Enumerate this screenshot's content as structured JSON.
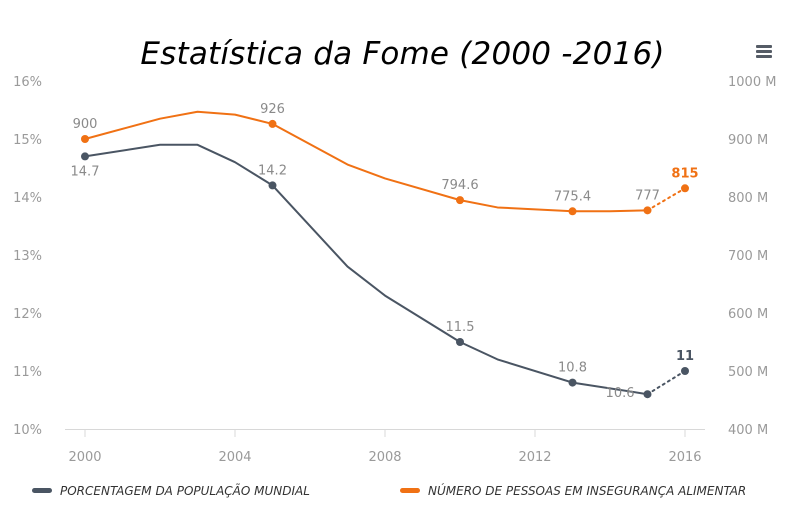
{
  "title": "Estatística da Fome (2000 -2016)",
  "menu_icon": "hamburger-menu-icon",
  "colors": {
    "gray": "#4a5563",
    "orange": "#f07114",
    "axis": "#d8d8d8",
    "ticks": "#9a9a9a"
  },
  "legend": [
    {
      "label": "PORCENTAGEM DA POPULAÇÃO MUNDIAL",
      "color": "#4a5563"
    },
    {
      "label": "NÚMERO DE PESSOAS EM INSEGURANÇA ALIMENTAR",
      "color": "#f07114"
    }
  ],
  "chart_data": {
    "type": "line",
    "title": "Estatística da Fome (2000 -2016)",
    "x_ticks": [
      "2000",
      "2004",
      "2008",
      "2012",
      "2016"
    ],
    "xlim": [
      2000,
      2016
    ],
    "y_left": {
      "ticks": [
        "10%",
        "11%",
        "12%",
        "13%",
        "14%",
        "15%",
        "16%"
      ],
      "range": [
        10,
        16
      ],
      "unit": "%"
    },
    "y_right": {
      "ticks": [
        "400 M",
        "500 M",
        "600 M",
        "700 M",
        "800 M",
        "900 M",
        "1000 M"
      ],
      "range": [
        400,
        1000
      ],
      "unit": "M"
    },
    "grid": false,
    "legend_position": "bottom",
    "series": [
      {
        "name": "PORCENTAGEM DA POPULAÇÃO MUNDIAL",
        "axis": "left",
        "color": "#4a5563",
        "x": [
          2000,
          2002,
          2003,
          2004,
          2005,
          2007,
          2008,
          2010,
          2011,
          2013,
          2015,
          2016
        ],
        "y": [
          14.7,
          14.9,
          14.9,
          14.6,
          14.2,
          12.8,
          12.3,
          11.5,
          11.2,
          10.8,
          10.6,
          11
        ],
        "markers": [
          {
            "x": 2000,
            "y": 14.7,
            "label": "14.7",
            "pos": "below"
          },
          {
            "x": 2005,
            "y": 14.2,
            "label": "14.2",
            "pos": "above"
          },
          {
            "x": 2010,
            "y": 11.5,
            "label": "11.5",
            "pos": "above"
          },
          {
            "x": 2013,
            "y": 10.8,
            "label": "10.8",
            "pos": "above"
          },
          {
            "x": 2015,
            "y": 10.6,
            "label": "10.6",
            "pos": "left"
          },
          {
            "x": 2016,
            "y": 11,
            "label": "11",
            "pos": "above",
            "bold": true
          }
        ],
        "projected_from_index": 10
      },
      {
        "name": "NÚMERO DE PESSOAS EM INSEGURANÇA ALIMENTAR",
        "axis": "right",
        "color": "#f07114",
        "x": [
          2000,
          2002,
          2003,
          2004,
          2005,
          2007,
          2008,
          2010,
          2011,
          2013,
          2014,
          2015,
          2016
        ],
        "y": [
          900,
          935,
          947,
          942,
          926,
          856,
          832,
          794.6,
          782,
          775.4,
          775.5,
          777,
          815
        ],
        "markers": [
          {
            "x": 2000,
            "y": 900,
            "label": "900",
            "pos": "above"
          },
          {
            "x": 2005,
            "y": 926,
            "label": "926",
            "pos": "above"
          },
          {
            "x": 2010,
            "y": 794.6,
            "label": "794.6",
            "pos": "above"
          },
          {
            "x": 2013,
            "y": 775.4,
            "label": "775.4",
            "pos": "above"
          },
          {
            "x": 2015,
            "y": 777,
            "label": "777",
            "pos": "above"
          },
          {
            "x": 2016,
            "y": 815,
            "label": "815",
            "pos": "above",
            "bold": true
          }
        ],
        "projected_from_index": 11
      }
    ]
  }
}
